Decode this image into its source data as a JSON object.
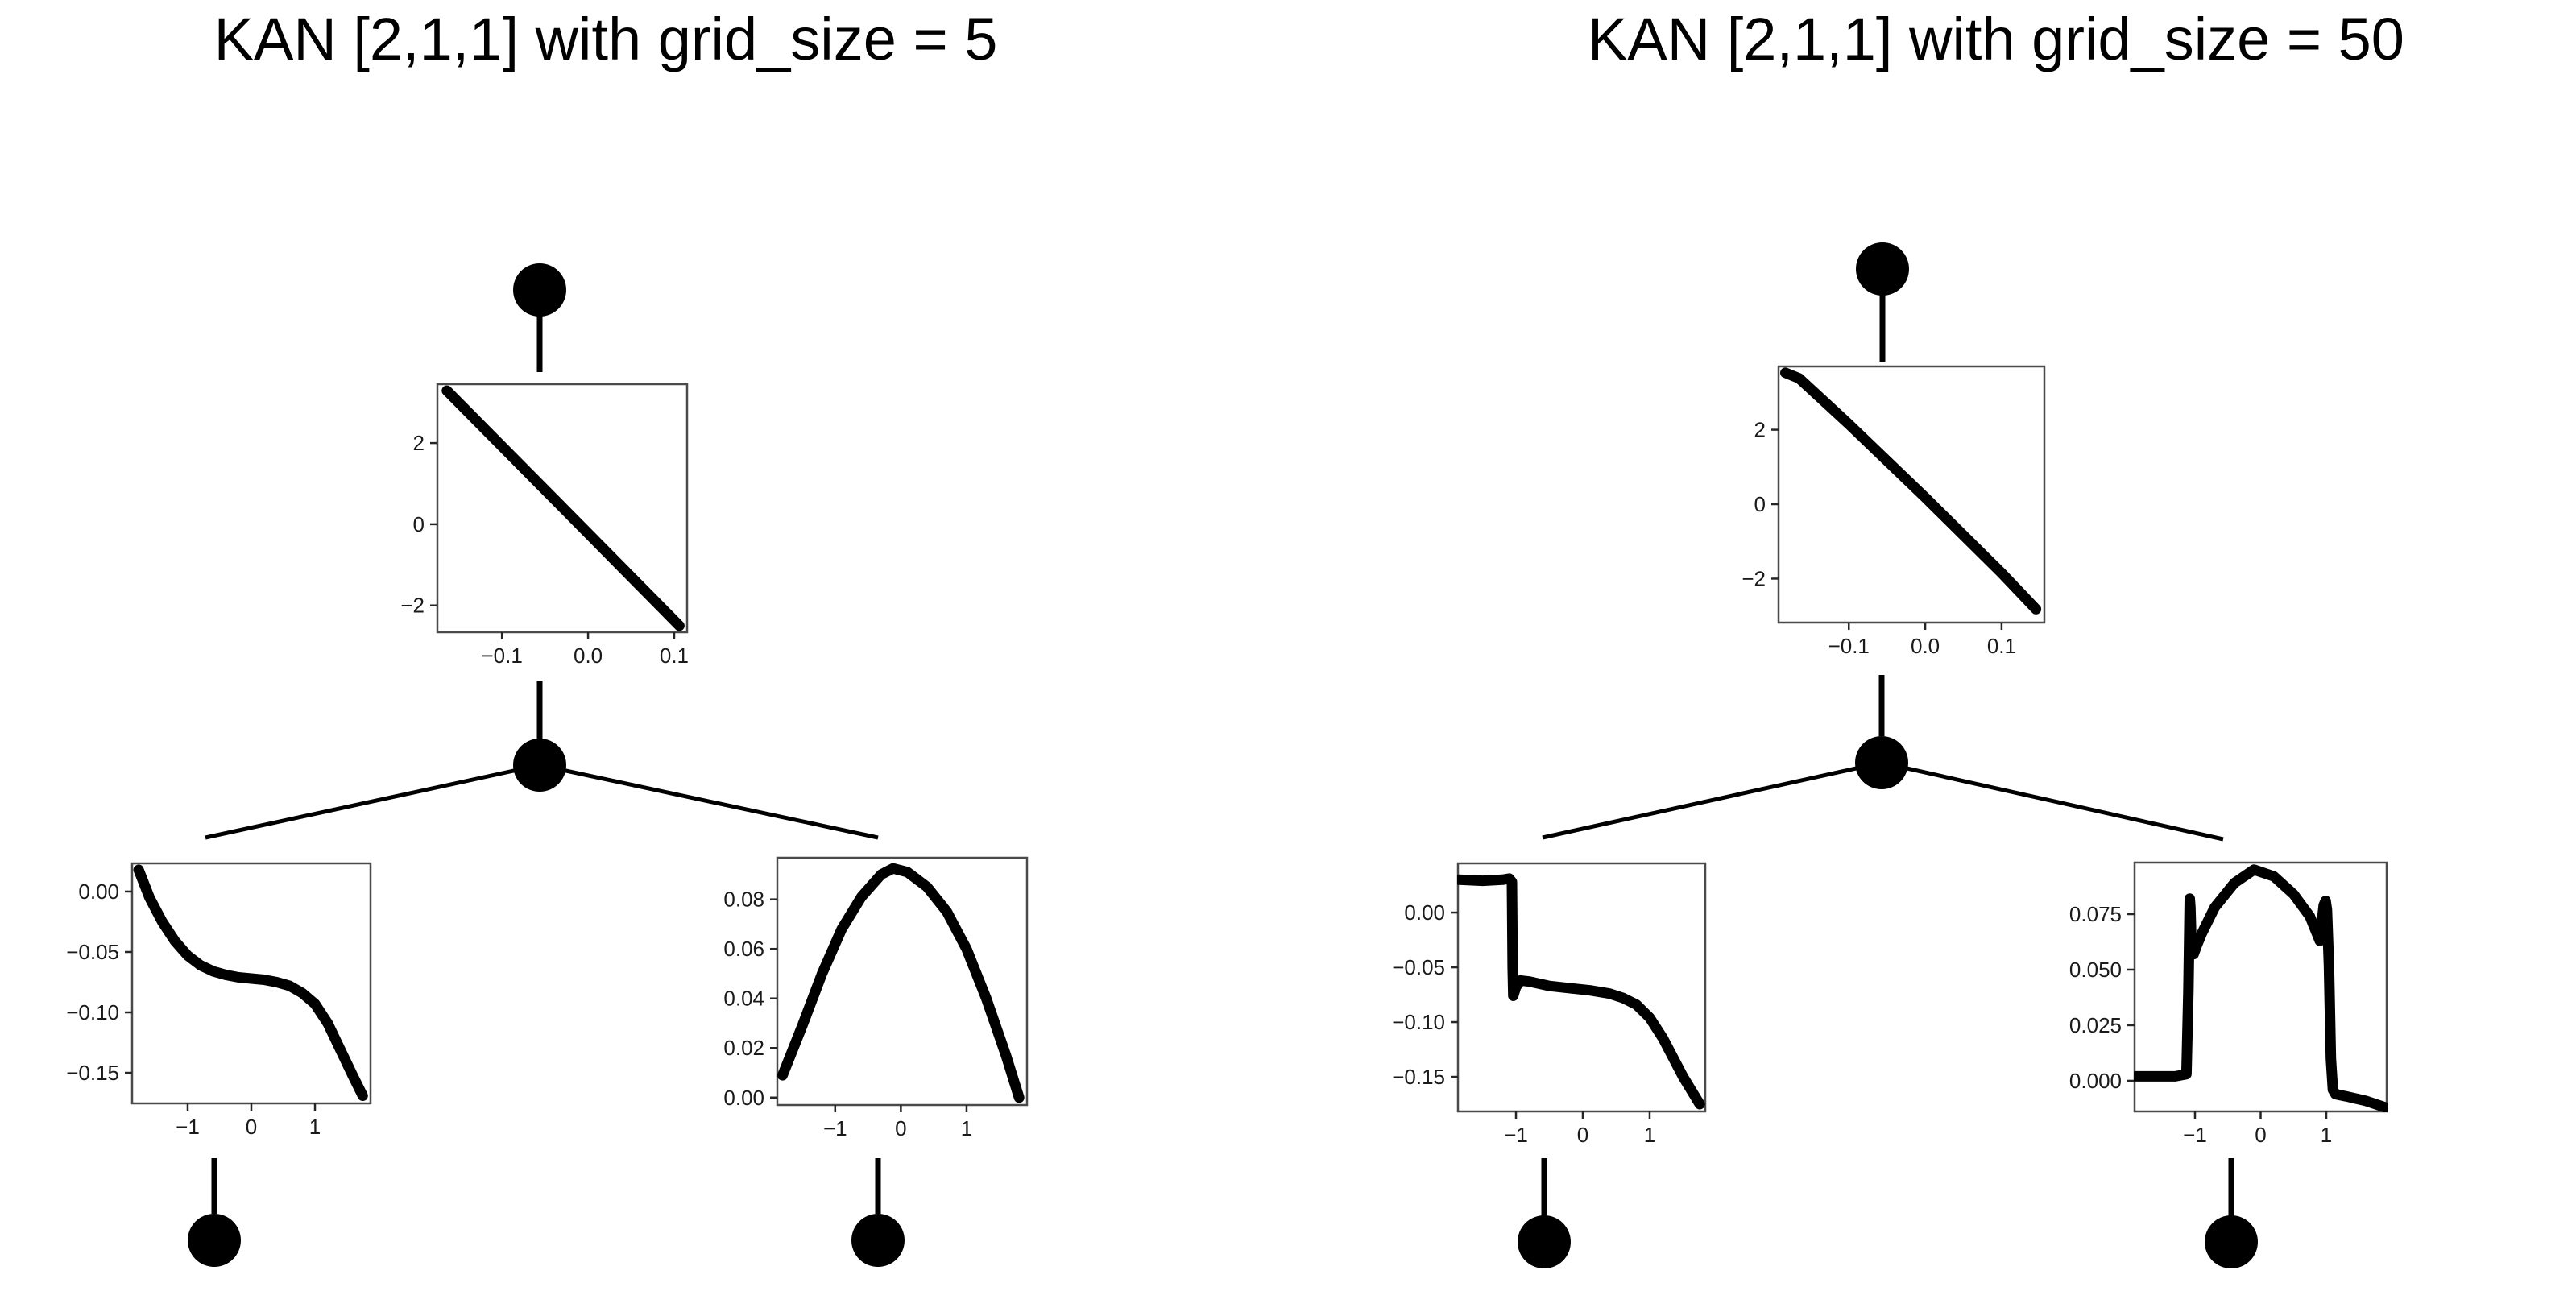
{
  "figure": {
    "background": "#ffffff",
    "description_left": "KAN network diagram with activation plots",
    "description_right": "KAN network diagram with activation plots"
  },
  "panels": [
    {
      "title": "KAN [2,1,1] with grid_size = 5"
    },
    {
      "title": "KAN [2,1,1] with grid_size = 50"
    }
  ],
  "colors": {
    "ink": "#000000",
    "box_border": "#4a4a4a",
    "tick_mark": "#262626",
    "tick_text": "#1a1a1a"
  },
  "chart_data": [
    {
      "id": "p1-top-edge",
      "panel": 0,
      "position": "top",
      "type": "line",
      "title": "",
      "xlabel": "",
      "ylabel": "",
      "grid": false,
      "legend": null,
      "xlim": [
        -0.175,
        0.115
      ],
      "ylim": [
        -2.66,
        3.45
      ],
      "xticks": {
        "values": [
          -0.1,
          0.0,
          0.1
        ],
        "labels": [
          "−0.1",
          "0.0",
          "0.1"
        ]
      },
      "yticks": {
        "values": [
          2,
          0,
          -2
        ],
        "labels": [
          "2",
          "0",
          "−2"
        ]
      },
      "x": [
        -0.164,
        -0.03,
        0.106
      ],
      "y": [
        3.29,
        0.42,
        -2.5
      ]
    },
    {
      "id": "p1-bottom-left-edge",
      "panel": 0,
      "position": "bottom-left",
      "type": "line",
      "title": "",
      "xlabel": "",
      "ylabel": "",
      "grid": false,
      "legend": null,
      "xlim": [
        -1.873,
        1.873
      ],
      "ylim": [
        -0.1753,
        0.0233
      ],
      "xticks": {
        "values": [
          -1,
          0,
          1
        ],
        "labels": [
          "−1",
          "0",
          "1"
        ]
      },
      "yticks": {
        "values": [
          0.0,
          -0.05,
          -0.1,
          -0.15
        ],
        "labels": [
          "0.00",
          "−0.05",
          "−0.10",
          "−0.15"
        ]
      },
      "x": [
        -1.77,
        -1.6,
        -1.4,
        -1.2,
        -1.0,
        -0.8,
        -0.6,
        -0.4,
        -0.2,
        0.0,
        0.2,
        0.4,
        0.6,
        0.8,
        1.0,
        1.2,
        1.4,
        1.6,
        1.75
      ],
      "y": [
        0.018,
        -0.005,
        -0.025,
        -0.041,
        -0.053,
        -0.061,
        -0.066,
        -0.069,
        -0.071,
        -0.072,
        -0.073,
        -0.075,
        -0.078,
        -0.084,
        -0.093,
        -0.109,
        -0.131,
        -0.153,
        -0.169
      ]
    },
    {
      "id": "p1-bottom-right-edge",
      "panel": 0,
      "position": "bottom-right",
      "type": "line",
      "title": "",
      "xlabel": "",
      "ylabel": "",
      "grid": false,
      "legend": null,
      "xlim": [
        -1.88,
        1.92
      ],
      "ylim": [
        -0.003,
        0.0968
      ],
      "xticks": {
        "values": [
          -1,
          0,
          1
        ],
        "labels": [
          "−1",
          "0",
          "1"
        ]
      },
      "yticks": {
        "values": [
          0.08,
          0.06,
          0.04,
          0.02,
          0.0
        ],
        "labels": [
          "0.08",
          "0.06",
          "0.04",
          "0.02",
          "0.00"
        ]
      },
      "x": [
        -1.8,
        -1.5,
        -1.2,
        -0.9,
        -0.6,
        -0.3,
        -0.12,
        0.1,
        0.4,
        0.7,
        1.0,
        1.3,
        1.6,
        1.8
      ],
      "y": [
        0.009,
        0.029,
        0.05,
        0.068,
        0.081,
        0.09,
        0.0925,
        0.091,
        0.085,
        0.075,
        0.06,
        0.04,
        0.017,
        0.0
      ]
    },
    {
      "id": "p2-top-edge",
      "panel": 1,
      "position": "top",
      "type": "line",
      "title": "",
      "xlabel": "",
      "ylabel": "",
      "grid": false,
      "legend": null,
      "xlim": [
        -0.192,
        0.156
      ],
      "ylim": [
        -3.18,
        3.7
      ],
      "xticks": {
        "values": [
          -0.1,
          0.0,
          0.1
        ],
        "labels": [
          "−0.1",
          "0.0",
          "0.1"
        ]
      },
      "yticks": {
        "values": [
          2,
          0,
          -2
        ],
        "labels": [
          "2",
          "0",
          "−2"
        ]
      },
      "x": [
        -0.183,
        -0.165,
        -0.1,
        0.0,
        0.1,
        0.145
      ],
      "y": [
        3.53,
        3.38,
        2.15,
        0.18,
        -1.85,
        -2.82
      ]
    },
    {
      "id": "p2-bottom-left-edge",
      "panel": 1,
      "position": "bottom-left",
      "type": "line",
      "title": "",
      "xlabel": "",
      "ylabel": "",
      "grid": false,
      "legend": null,
      "xlim": [
        -1.868,
        1.832
      ],
      "ylim": [
        -0.1816,
        0.0449
      ],
      "xticks": {
        "values": [
          -1,
          0,
          1
        ],
        "labels": [
          "−1",
          "0",
          "1"
        ]
      },
      "yticks": {
        "values": [
          0.0,
          -0.05,
          -0.1,
          -0.15
        ],
        "labels": [
          "0.00",
          "−0.05",
          "−0.10",
          "−0.15"
        ]
      },
      "x": [
        -1.85,
        -1.5,
        -1.2,
        -1.1,
        -1.06,
        -1.05,
        -1.04,
        -1.0,
        -0.93,
        -0.8,
        -0.5,
        -0.2,
        0.1,
        0.4,
        0.6,
        0.8,
        1.0,
        1.2,
        1.5,
        1.75
      ],
      "y": [
        0.03,
        0.029,
        0.03,
        0.031,
        0.028,
        -0.05,
        -0.076,
        -0.068,
        -0.062,
        -0.063,
        -0.067,
        -0.069,
        -0.071,
        -0.074,
        -0.078,
        -0.084,
        -0.096,
        -0.115,
        -0.15,
        -0.175
      ]
    },
    {
      "id": "p2-bottom-right-edge",
      "panel": 1,
      "position": "bottom-right",
      "type": "line",
      "title": "",
      "xlabel": "",
      "ylabel": "",
      "grid": false,
      "legend": null,
      "xlim": [
        -1.92,
        1.92
      ],
      "ylim": [
        -0.0138,
        0.0982
      ],
      "xticks": {
        "values": [
          -1,
          0,
          1
        ],
        "labels": [
          "−1",
          "0",
          "1"
        ]
      },
      "yticks": {
        "values": [
          0.075,
          0.05,
          0.025,
          0.0
        ],
        "labels": [
          "0.075",
          "0.050",
          "0.025",
          "0.000"
        ]
      },
      "x": [
        -1.9,
        -1.6,
        -1.3,
        -1.13,
        -1.1,
        -1.08,
        -1.07,
        -1.05,
        -1.02,
        -0.97,
        -0.9,
        -0.7,
        -0.4,
        -0.1,
        0.2,
        0.5,
        0.75,
        0.9,
        0.96,
        0.99,
        1.01,
        1.04,
        1.07,
        1.1,
        1.14,
        1.3,
        1.6,
        1.9
      ],
      "y": [
        0.002,
        0.002,
        0.002,
        0.003,
        0.04,
        0.082,
        0.078,
        0.058,
        0.057,
        0.061,
        0.066,
        0.078,
        0.089,
        0.095,
        0.092,
        0.084,
        0.074,
        0.063,
        0.079,
        0.081,
        0.077,
        0.052,
        0.01,
        -0.004,
        -0.006,
        -0.007,
        -0.009,
        -0.012
      ]
    }
  ]
}
